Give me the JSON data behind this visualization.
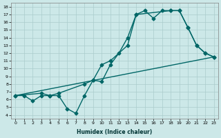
{
  "xlabel": "Humidex (Indice chaleur)",
  "bg_color": "#cce8e8",
  "grid_color": "#aacccc",
  "line_color": "#006666",
  "xlim": [
    -0.5,
    23.5
  ],
  "ylim": [
    3.5,
    18.5
  ],
  "xticks": [
    0,
    1,
    2,
    3,
    4,
    5,
    6,
    7,
    8,
    9,
    10,
    11,
    12,
    13,
    14,
    15,
    16,
    17,
    18,
    19,
    20,
    21,
    22,
    23
  ],
  "yticks": [
    4,
    5,
    6,
    7,
    8,
    9,
    10,
    11,
    12,
    13,
    14,
    15,
    16,
    17,
    18
  ],
  "series1_x": [
    0,
    1,
    2,
    3,
    4,
    5,
    6,
    7,
    8,
    9,
    10,
    11,
    12,
    13,
    14,
    15,
    16,
    17,
    18,
    19,
    20,
    21,
    22,
    23
  ],
  "series1_y": [
    6.5,
    6.5,
    5.8,
    6.5,
    6.5,
    6.5,
    4.8,
    4.2,
    6.5,
    8.5,
    8.3,
    10.5,
    12.0,
    14.0,
    17.0,
    17.5,
    16.5,
    17.5,
    17.5,
    17.5,
    15.3,
    13.0,
    12.0,
    11.5
  ],
  "series2_x": [
    0,
    3,
    4,
    5,
    8,
    9,
    10,
    11,
    13,
    14,
    18,
    19,
    20,
    21,
    22,
    23
  ],
  "series2_y": [
    6.5,
    6.8,
    6.5,
    6.8,
    8.0,
    8.5,
    10.5,
    11.0,
    13.0,
    17.0,
    17.5,
    17.5,
    15.3,
    13.0,
    12.0,
    11.5
  ],
  "series3_x": [
    0,
    23
  ],
  "series3_y": [
    6.5,
    11.5
  ],
  "marker": "D",
  "marker_size": 2.5,
  "linewidth": 1.0
}
